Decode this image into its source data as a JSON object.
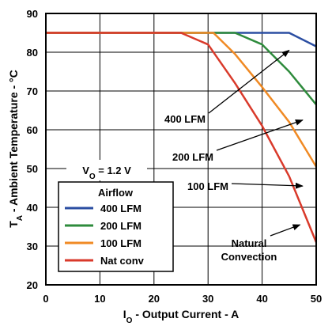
{
  "chart_data": {
    "type": "line",
    "xlim": [
      0,
      50
    ],
    "ylim": [
      20,
      90
    ],
    "x_ticks": [
      "0",
      "10",
      "20",
      "30",
      "40",
      "50"
    ],
    "y_ticks": [
      "20",
      "30",
      "40",
      "50",
      "60",
      "70",
      "80",
      "90"
    ],
    "xlabel": {
      "main": "I",
      "sub": "O",
      "rest": " - Output Current - A"
    },
    "ylabel": {
      "main": "T",
      "sub": "A",
      "rest": " - Ambient Temperature - °C"
    },
    "grid": true,
    "condition": {
      "main": "V",
      "sub": "O",
      "rest": " = 1.2 V"
    },
    "legend": {
      "title": "Airflow",
      "placement": "bottom-left"
    },
    "series": [
      {
        "name": "400 LFM",
        "color": "#2b4ea2",
        "x": [
          0,
          45,
          50
        ],
        "y": [
          85,
          85,
          81.5
        ]
      },
      {
        "name": "200 LFM",
        "color": "#2e8b3c",
        "x": [
          0,
          35,
          40,
          45,
          50
        ],
        "y": [
          85,
          85,
          82,
          75,
          66.5
        ]
      },
      {
        "name": "100 LFM",
        "color": "#f08a24",
        "x": [
          0,
          31,
          35,
          40,
          45,
          50
        ],
        "y": [
          85,
          85,
          79.5,
          71,
          62,
          50.5
        ]
      },
      {
        "name": "Nat conv",
        "color": "#d93a2b",
        "x": [
          0,
          25,
          30,
          35,
          40,
          45,
          50
        ],
        "y": [
          85,
          85,
          82,
          72,
          61,
          48,
          31
        ]
      }
    ],
    "annotations": [
      {
        "text": "400 LFM",
        "target": [
          45,
          80.5
        ]
      },
      {
        "text": "200 LFM",
        "target": [
          47.5,
          62.5
        ]
      },
      {
        "text": "100 LFM",
        "target": [
          47.5,
          45.5
        ]
      },
      {
        "text": "Natural",
        "line2": "Convection",
        "target": [
          47,
          35.5
        ]
      }
    ]
  }
}
